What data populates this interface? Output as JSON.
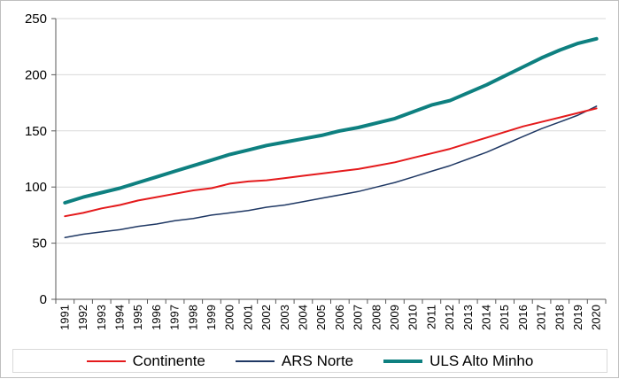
{
  "chart_data": {
    "type": "line",
    "title": "",
    "xlabel": "",
    "ylabel": "",
    "ylim": [
      0,
      250
    ],
    "yticks": [
      "0",
      "50",
      "100",
      "150",
      "200",
      "250"
    ],
    "grid": "horizontal",
    "legend_position": "bottom",
    "categories": [
      "1991",
      "1992",
      "1993",
      "1994",
      "1995",
      "1996",
      "1997",
      "1998",
      "1999",
      "2000",
      "2001",
      "2002",
      "2003",
      "2004",
      "2005",
      "2006",
      "2007",
      "2008",
      "2009",
      "2010",
      "2011",
      "2012",
      "2013",
      "2014",
      "2015",
      "2016",
      "2017",
      "2018",
      "2019",
      "2020"
    ],
    "series": [
      {
        "name": "Continente",
        "color": "#e41a1c",
        "values": [
          74,
          77,
          81,
          84,
          88,
          91,
          94,
          97,
          99,
          103,
          105,
          106,
          108,
          110,
          112,
          114,
          116,
          119,
          122,
          126,
          130,
          134,
          139,
          144,
          149,
          154,
          158,
          162,
          166,
          170
        ]
      },
      {
        "name": "ARS Norte",
        "color": "#1f3864",
        "values": [
          55,
          58,
          60,
          62,
          65,
          67,
          70,
          72,
          75,
          77,
          79,
          82,
          84,
          87,
          90,
          93,
          96,
          100,
          104,
          109,
          114,
          119,
          125,
          131,
          138,
          145,
          152,
          158,
          164,
          172
        ]
      },
      {
        "name": "ULS Alto Minho",
        "color": "#0e8080",
        "values": [
          86,
          91,
          95,
          99,
          104,
          109,
          114,
          119,
          124,
          129,
          133,
          137,
          140,
          143,
          146,
          150,
          153,
          157,
          161,
          167,
          173,
          177,
          184,
          191,
          199,
          207,
          215,
          222,
          228,
          232
        ]
      }
    ]
  }
}
